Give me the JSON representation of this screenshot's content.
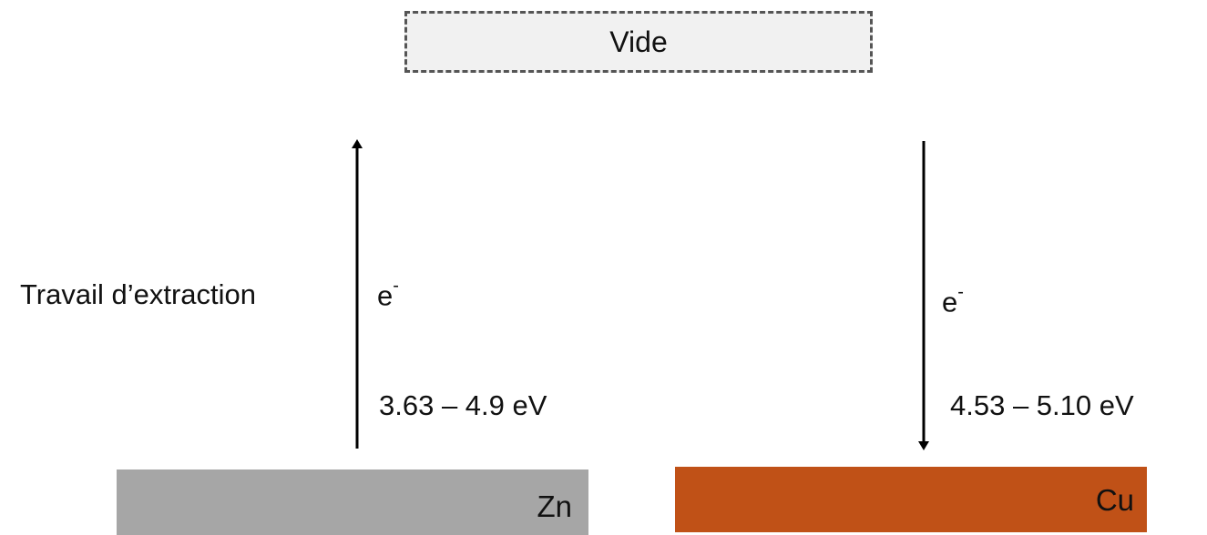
{
  "vacuum": {
    "label": "Vide"
  },
  "work_function_label": "Travail d’extraction",
  "electron": {
    "base": "e",
    "charge": "-"
  },
  "metals": [
    {
      "name": "Zn",
      "work_function_range": "3.63 – 4.9 eV",
      "color": "#a6a6a6",
      "arrow_direction": "up"
    },
    {
      "name": "Cu",
      "work_function_range": "4.53 – 5.10 eV",
      "color": "#c05117",
      "arrow_direction": "down"
    }
  ],
  "colors": {
    "vacuum_fill": "#f1f1f1",
    "vacuum_border": "#555555",
    "arrow": "#000000"
  }
}
